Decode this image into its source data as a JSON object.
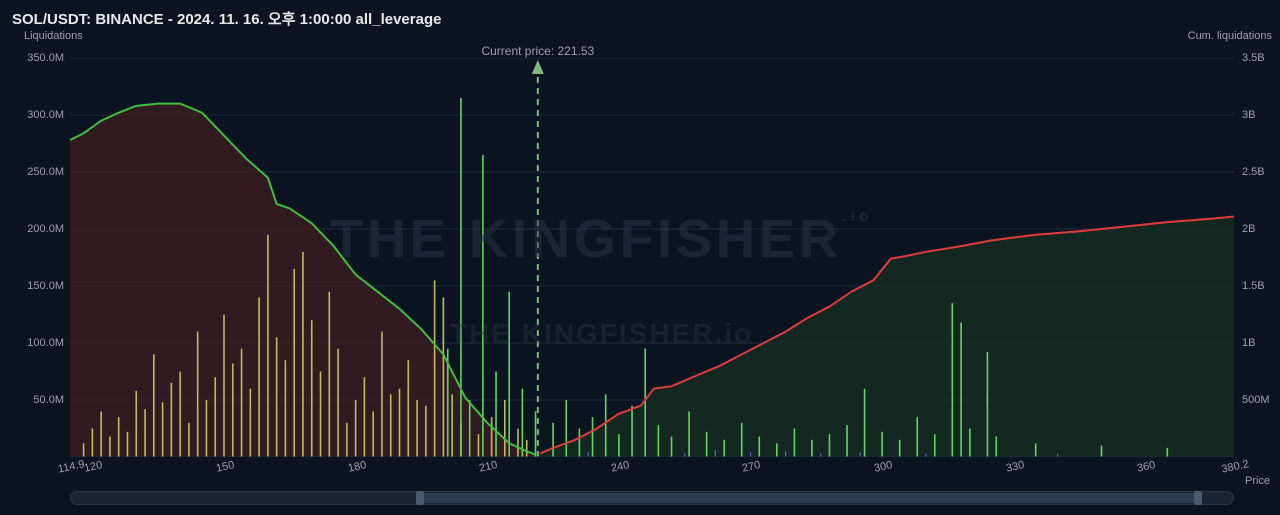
{
  "title": "SOL/USDT: BINANCE - 2024. 11. 16. 오후 1:00:00 all_leverage",
  "labels": {
    "left_axis": "Liquidations",
    "right_axis": "Cum. liquidations",
    "bottom_axis": "Price",
    "current_price": "Current price: 221.53"
  },
  "watermark": {
    "main": "THE   KINGFISHER",
    "sub": "THE   KINGFISHER.io",
    "suffix": ".io"
  },
  "chart": {
    "type": "liquidation-map",
    "background_color": "#0d1421",
    "grid_color": "#1e2a3d",
    "text_color": "#9aa0ac",
    "title_color": "#e8e8e8",
    "title_fontsize": 15,
    "label_fontsize": 11,
    "plot": {
      "x_min": 114.9,
      "x_max": 380.2,
      "x_ticks": [
        114.9,
        120,
        150,
        180,
        210,
        240,
        270,
        300,
        330,
        360,
        380.2
      ],
      "y_left_min": 0,
      "y_left_max": 350,
      "y_left_ticks": [
        50,
        100,
        150,
        200,
        250,
        300,
        350
      ],
      "y_left_suffix": ".0M",
      "y_right_min": 0,
      "y_right_max": 3.5,
      "y_right_ticks": [
        0.5,
        1,
        1.5,
        2,
        2.5,
        3,
        3.5
      ],
      "y_right_suffix": "B",
      "y_right_half_suffix": "00M"
    },
    "current_price_line": {
      "x": 221.53,
      "color": "#7fba7a",
      "dash": "6,5",
      "width": 2,
      "arrow": true
    },
    "long_cumulative": {
      "line_color": "#3fbf3f",
      "fill_color": "#3d1e20",
      "fill_opacity": 0.75,
      "line_width": 2,
      "points": [
        [
          114.9,
          2.78
        ],
        [
          118,
          2.84
        ],
        [
          122,
          2.95
        ],
        [
          126,
          3.02
        ],
        [
          130,
          3.08
        ],
        [
          135,
          3.1
        ],
        [
          140,
          3.1
        ],
        [
          145,
          3.02
        ],
        [
          150,
          2.82
        ],
        [
          155,
          2.62
        ],
        [
          160,
          2.45
        ],
        [
          162,
          2.22
        ],
        [
          165,
          2.18
        ],
        [
          170,
          2.05
        ],
        [
          175,
          1.85
        ],
        [
          180,
          1.6
        ],
        [
          185,
          1.45
        ],
        [
          190,
          1.3
        ],
        [
          195,
          1.12
        ],
        [
          200,
          0.9
        ],
        [
          205,
          0.52
        ],
        [
          210,
          0.3
        ],
        [
          215,
          0.12
        ],
        [
          219,
          0.05
        ],
        [
          221,
          0.02
        ]
      ]
    },
    "short_cumulative": {
      "line_color": "#e03c3c",
      "fill_color": "#173022",
      "fill_opacity": 0.7,
      "line_width": 2,
      "points": [
        [
          222,
          0.03
        ],
        [
          225,
          0.08
        ],
        [
          230,
          0.15
        ],
        [
          235,
          0.25
        ],
        [
          240,
          0.38
        ],
        [
          245,
          0.45
        ],
        [
          248,
          0.6
        ],
        [
          252,
          0.62
        ],
        [
          258,
          0.72
        ],
        [
          263,
          0.8
        ],
        [
          268,
          0.9
        ],
        [
          273,
          1.0
        ],
        [
          278,
          1.1
        ],
        [
          283,
          1.22
        ],
        [
          288,
          1.32
        ],
        [
          293,
          1.45
        ],
        [
          298,
          1.55
        ],
        [
          302,
          1.74
        ],
        [
          305,
          1.76
        ],
        [
          310,
          1.8
        ],
        [
          318,
          1.85
        ],
        [
          325,
          1.9
        ],
        [
          335,
          1.95
        ],
        [
          345,
          1.98
        ],
        [
          355,
          2.02
        ],
        [
          365,
          2.06
        ],
        [
          375,
          2.09
        ],
        [
          380.2,
          2.11
        ]
      ]
    },
    "bars_long": {
      "color": "#c4b85a",
      "width": 1.6,
      "data": [
        [
          118,
          12
        ],
        [
          120,
          25
        ],
        [
          122,
          40
        ],
        [
          124,
          18
        ],
        [
          126,
          35
        ],
        [
          128,
          22
        ],
        [
          130,
          58
        ],
        [
          132,
          42
        ],
        [
          134,
          90
        ],
        [
          136,
          48
        ],
        [
          138,
          65
        ],
        [
          140,
          75
        ],
        [
          142,
          30
        ],
        [
          144,
          110
        ],
        [
          146,
          50
        ],
        [
          148,
          70
        ],
        [
          150,
          125
        ],
        [
          152,
          82
        ],
        [
          154,
          95
        ],
        [
          156,
          60
        ],
        [
          158,
          140
        ],
        [
          160,
          195
        ],
        [
          162,
          105
        ],
        [
          164,
          85
        ],
        [
          166,
          165
        ],
        [
          168,
          180
        ],
        [
          170,
          120
        ],
        [
          172,
          75
        ],
        [
          174,
          145
        ],
        [
          176,
          95
        ],
        [
          178,
          30
        ],
        [
          180,
          50
        ],
        [
          182,
          70
        ],
        [
          184,
          40
        ],
        [
          186,
          110
        ],
        [
          188,
          55
        ],
        [
          190,
          60
        ],
        [
          192,
          85
        ],
        [
          194,
          50
        ],
        [
          196,
          45
        ],
        [
          198,
          155
        ],
        [
          200,
          140
        ],
        [
          202,
          55
        ],
        [
          204,
          30
        ],
        [
          208,
          20
        ],
        [
          211,
          35
        ],
        [
          214,
          50
        ],
        [
          217,
          25
        ],
        [
          219,
          15
        ]
      ]
    },
    "bars_short": {
      "color": "#5fd75f",
      "width": 1.6,
      "data": [
        [
          201,
          95
        ],
        [
          204,
          315
        ],
        [
          206,
          50
        ],
        [
          209,
          265
        ],
        [
          212,
          75
        ],
        [
          215,
          145
        ],
        [
          218,
          60
        ],
        [
          221,
          40
        ],
        [
          225,
          30
        ],
        [
          228,
          50
        ],
        [
          231,
          25
        ],
        [
          234,
          35
        ],
        [
          237,
          55
        ],
        [
          240,
          20
        ],
        [
          243,
          45
        ],
        [
          246,
          95
        ],
        [
          249,
          28
        ],
        [
          252,
          18
        ],
        [
          256,
          40
        ],
        [
          260,
          22
        ],
        [
          264,
          15
        ],
        [
          268,
          30
        ],
        [
          272,
          18
        ],
        [
          276,
          12
        ],
        [
          280,
          25
        ],
        [
          284,
          15
        ],
        [
          288,
          20
        ],
        [
          292,
          28
        ],
        [
          296,
          60
        ],
        [
          300,
          22
        ],
        [
          304,
          15
        ],
        [
          308,
          35
        ],
        [
          312,
          20
        ],
        [
          316,
          135
        ],
        [
          318,
          118
        ],
        [
          320,
          25
        ],
        [
          324,
          92
        ],
        [
          326,
          18
        ],
        [
          335,
          12
        ],
        [
          350,
          10
        ],
        [
          365,
          8
        ]
      ]
    },
    "bars_short_tiny": {
      "color": "#6a5acd",
      "width": 1.2,
      "data": [
        [
          233,
          4
        ],
        [
          246,
          5
        ],
        [
          255,
          3
        ],
        [
          262,
          6
        ],
        [
          270,
          4
        ],
        [
          278,
          5
        ],
        [
          286,
          3
        ],
        [
          295,
          4
        ],
        [
          310,
          3
        ],
        [
          340,
          3
        ]
      ]
    }
  },
  "scrollbar": {
    "track_color": "#1a2332",
    "thumb_color": "#2d3b52",
    "handle_color": "#4a5a72",
    "thumb_left_pct": 30,
    "thumb_right_pct": 97
  }
}
